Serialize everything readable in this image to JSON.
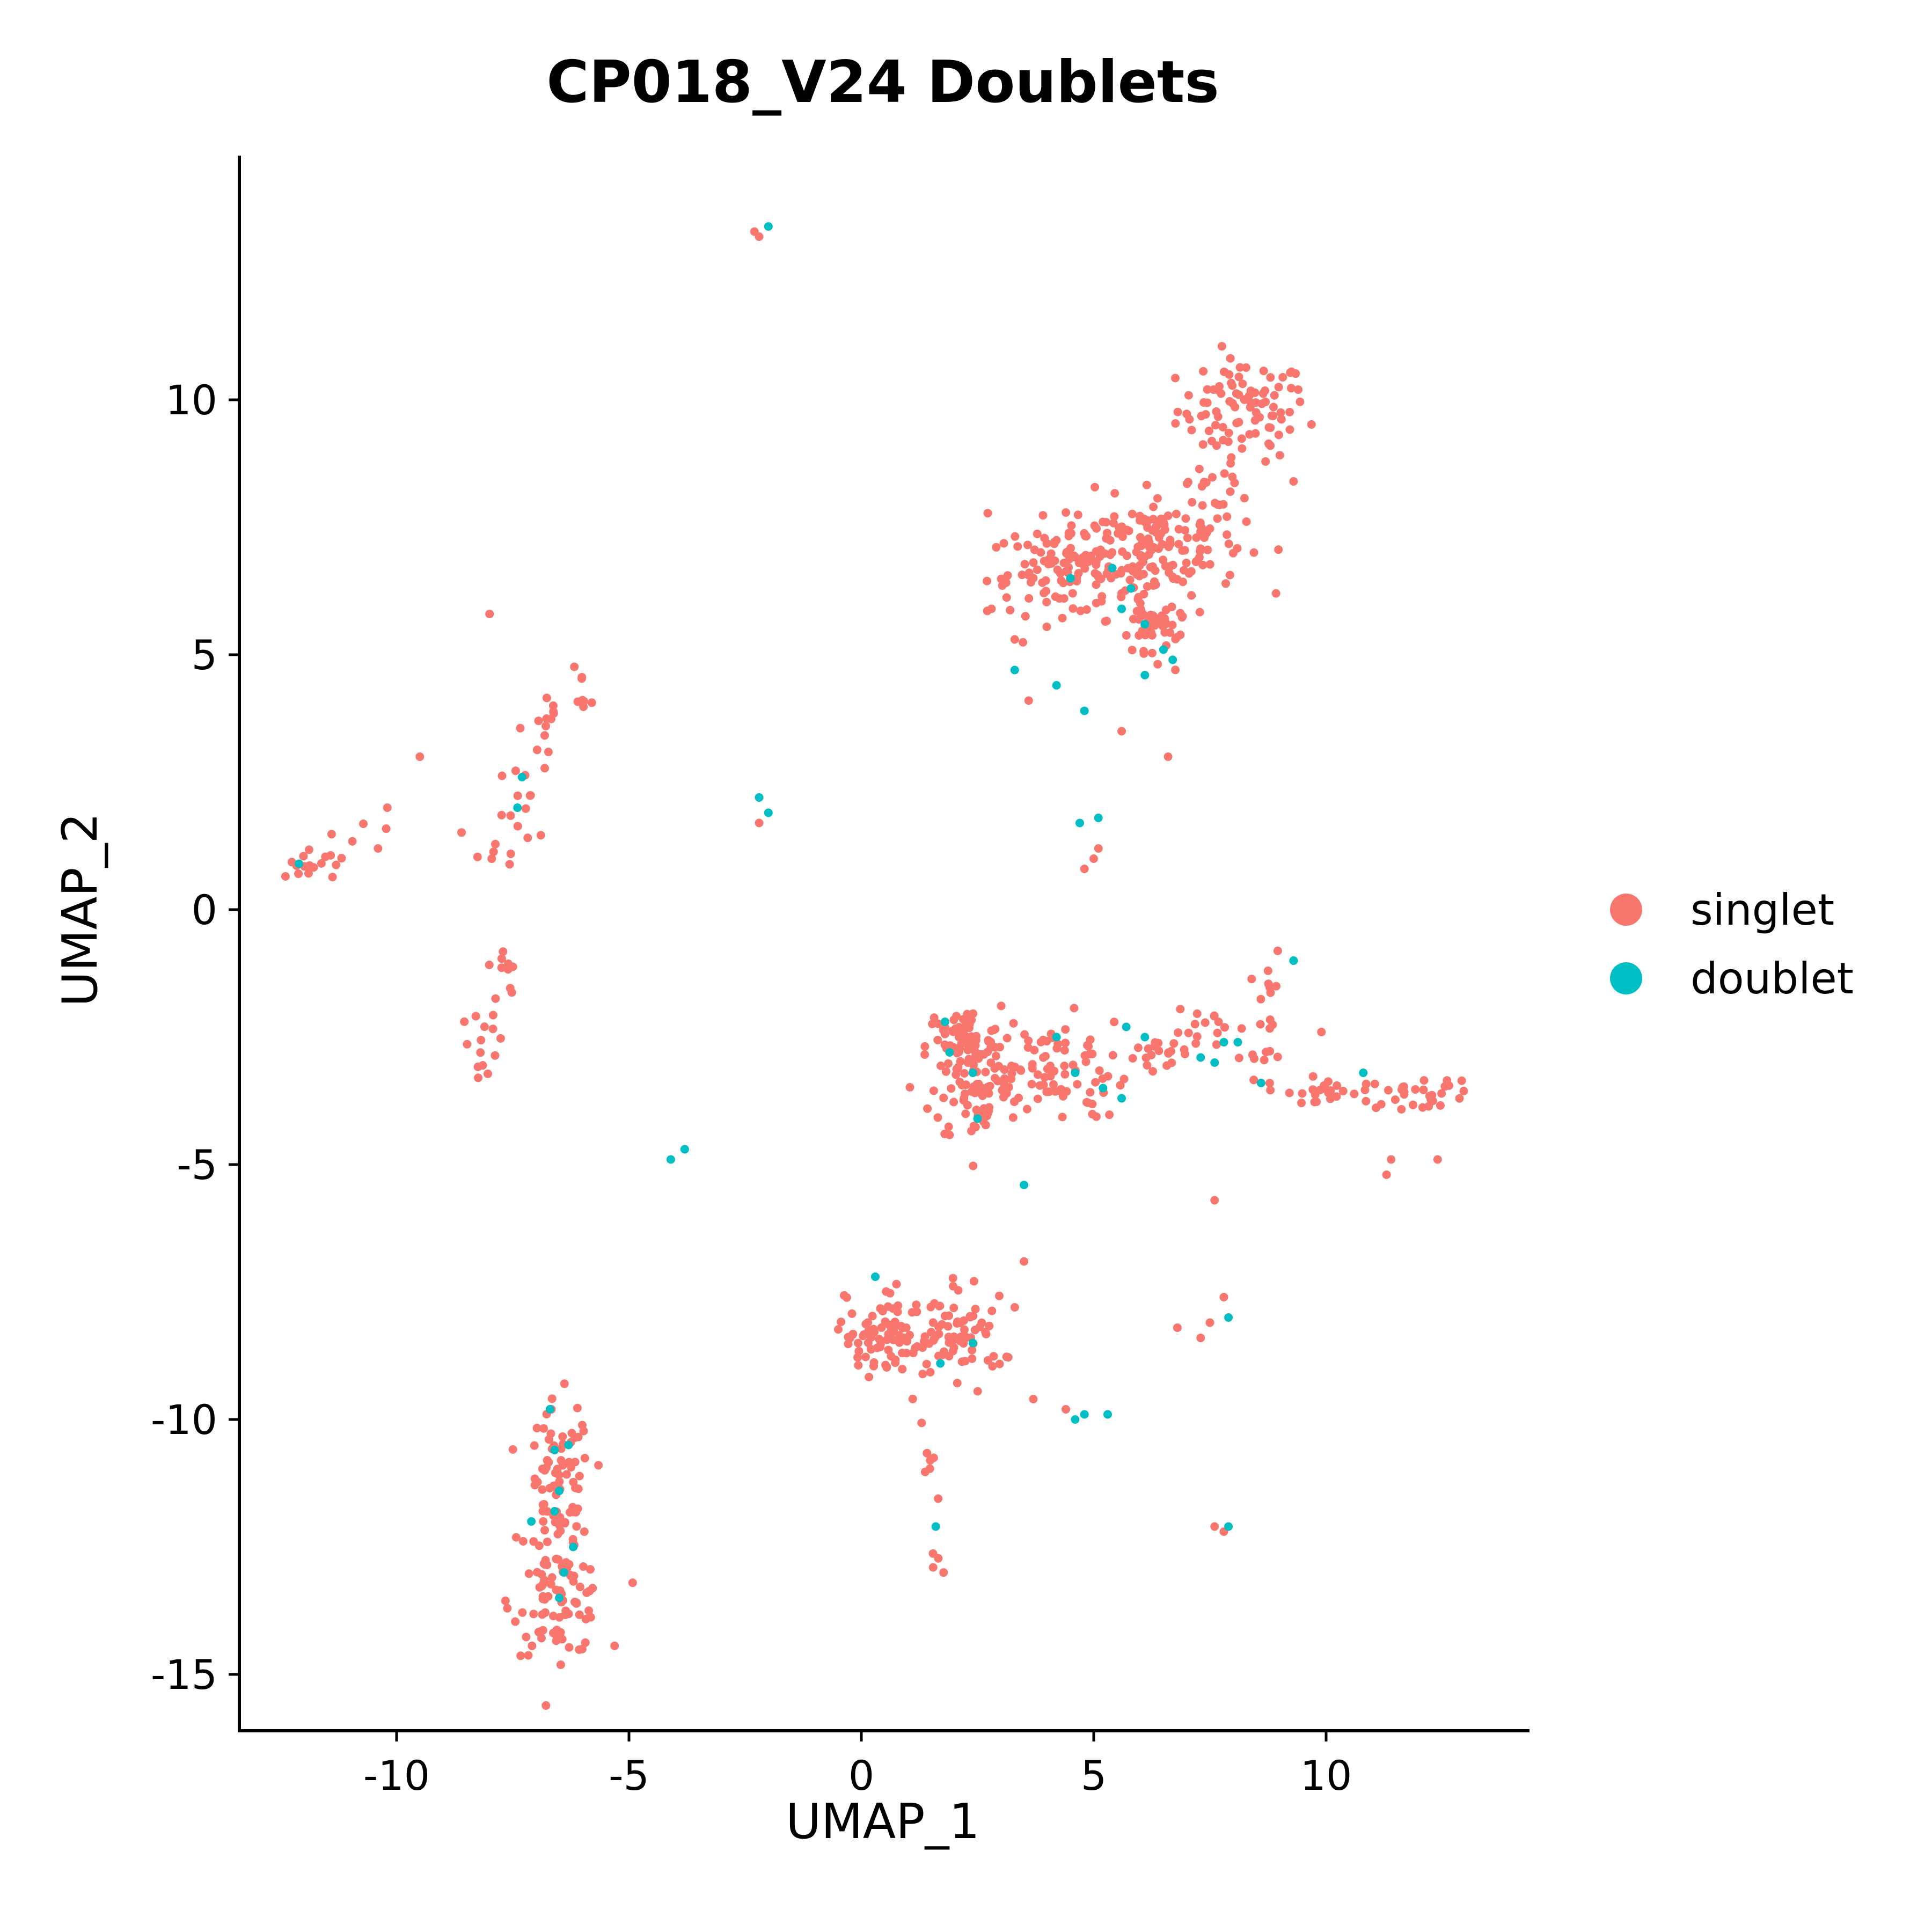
{
  "chart_data": {
    "type": "scatter",
    "title": "CP018_V24 Doublets",
    "xlabel": "UMAP_1",
    "ylabel": "UMAP_2",
    "xlim": [
      -13.7,
      14.0
    ],
    "ylim": [
      -16.1,
      14.8
    ],
    "x_ticks": [
      -10,
      -5,
      0,
      5,
      10
    ],
    "x_tick_labels": [
      "-10",
      "-5",
      "0",
      "5",
      "10"
    ],
    "y_ticks": [
      -15,
      -10,
      -5,
      0,
      5,
      10
    ],
    "y_tick_labels": [
      "-15",
      "-10",
      "-5",
      "0",
      "5",
      "10"
    ],
    "grid": false,
    "legend_position": "right",
    "series": [
      {
        "name": "singlet",
        "color": "#F8766D",
        "clusters": [
          {
            "center": [
              8.2,
              9.8
            ],
            "spread": [
              0.7,
              0.5
            ],
            "n": 90
          },
          {
            "center": [
              6.2,
              7.2
            ],
            "spread": [
              1.0,
              0.5
            ],
            "n": 160
          },
          {
            "center": [
              4.3,
              6.6
            ],
            "spread": [
              0.8,
              0.4
            ],
            "n": 90
          },
          {
            "center": [
              6.3,
              5.7
            ],
            "spread": [
              0.5,
              0.6
            ],
            "n": 45
          },
          {
            "center": [
              -6.5,
              -11.5
            ],
            "spread": [
              0.35,
              0.9
            ],
            "n": 90
          },
          {
            "center": [
              -6.5,
              -13.6
            ],
            "spread": [
              0.5,
              0.5
            ],
            "n": 80
          },
          {
            "center": [
              2.2,
              -2.7
            ],
            "spread": [
              0.4,
              0.4
            ],
            "n": 80
          },
          {
            "center": [
              2.5,
              -3.6
            ],
            "spread": [
              0.5,
              0.5
            ],
            "n": 60
          },
          {
            "center": [
              4.0,
              -3.1
            ],
            "spread": [
              0.9,
              0.5
            ],
            "n": 90
          },
          {
            "center": [
              0.3,
              -8.5
            ],
            "spread": [
              0.3,
              0.3
            ],
            "n": 45
          },
          {
            "center": [
              1.3,
              -8.3
            ],
            "spread": [
              0.8,
              0.5
            ],
            "n": 70
          },
          {
            "center": [
              2.3,
              -8.4
            ],
            "spread": [
              0.4,
              0.4
            ],
            "n": 40
          },
          {
            "center": [
              12.0,
              -3.6
            ],
            "spread": [
              0.6,
              0.15
            ],
            "n": 30
          },
          {
            "center": [
              10.0,
              -3.6
            ],
            "spread": [
              0.4,
              0.15
            ],
            "n": 18
          },
          {
            "center": [
              6.5,
              -2.7
            ],
            "spread": [
              0.5,
              0.15
            ],
            "n": 15
          },
          {
            "center": [
              7.5,
              -2.4
            ],
            "spread": [
              0.4,
              0.2
            ],
            "n": 15
          }
        ],
        "trails": [
          {
            "from": [
              -12.2,
              0.7
            ],
            "to": [
              -10.5,
              1.6
            ],
            "n": 20,
            "jitter": 0.2
          },
          {
            "from": [
              -8.3,
              -3.3
            ],
            "to": [
              -7.6,
              -0.8
            ],
            "n": 25,
            "jitter": 0.2
          },
          {
            "from": [
              -7.9,
              0.9
            ],
            "to": [
              -7.2,
              2.6
            ],
            "n": 20,
            "jitter": 0.25
          },
          {
            "from": [
              -7.0,
              3.3
            ],
            "to": [
              -5.8,
              4.6
            ],
            "n": 20,
            "jitter": 0.2
          },
          {
            "from": [
              1.2,
              -9.5
            ],
            "to": [
              1.7,
              -13.0
            ],
            "n": 12,
            "jitter": 0.08
          },
          {
            "from": [
              8.6,
              -2.6
            ],
            "to": [
              9.0,
              -0.5
            ],
            "n": 12,
            "jitter": 0.2
          },
          {
            "from": [
              8.1,
              -2.9
            ],
            "to": [
              9.8,
              -3.8
            ],
            "n": 15,
            "jitter": 0.2
          },
          {
            "from": [
              7.2,
              7.9
            ],
            "to": [
              8.3,
              9.0
            ],
            "n": 15,
            "jitter": 0.3
          },
          {
            "from": [
              6.2,
              6.5
            ],
            "to": [
              6.4,
              4.9
            ],
            "n": 15,
            "jitter": 0.3
          }
        ],
        "points": [
          [
            -8.0,
            5.8
          ],
          [
            -9.5,
            3.0
          ],
          [
            -10.2,
            2.0
          ],
          [
            -10.4,
            1.2
          ],
          [
            -2.3,
            13.3
          ],
          [
            -2.2,
            13.2
          ],
          [
            -2.2,
            1.7
          ],
          [
            5.0,
            1.0
          ],
          [
            4.8,
            0.8
          ],
          [
            5.1,
            1.2
          ],
          [
            5.6,
            3.5
          ],
          [
            6.6,
            3.0
          ],
          [
            3.6,
            4.1
          ],
          [
            2.8,
            5.9
          ],
          [
            3.3,
            5.3
          ],
          [
            7.6,
            -5.7
          ],
          [
            11.3,
            -5.2
          ],
          [
            12.4,
            -4.9
          ],
          [
            11.4,
            -4.9
          ],
          [
            3.7,
            -9.6
          ],
          [
            3.5,
            -6.9
          ],
          [
            3.3,
            -7.8
          ],
          [
            4.4,
            -9.8
          ],
          [
            7.8,
            -7.6
          ],
          [
            7.5,
            -8.1
          ],
          [
            6.8,
            -8.2
          ],
          [
            7.3,
            -8.4
          ],
          [
            7.6,
            -12.1
          ],
          [
            7.8,
            -12.2
          ],
          [
            9.9,
            -2.4
          ],
          [
            9.3,
            8.4
          ],
          [
            8.8,
            9.1
          ],
          [
            9.4,
            10.2
          ]
        ]
      },
      {
        "name": "doublet",
        "color": "#00BFC4",
        "points": [
          [
            -2.0,
            13.4
          ],
          [
            -2.2,
            2.2
          ],
          [
            -2.0,
            1.9
          ],
          [
            -12.1,
            0.9
          ],
          [
            -7.3,
            2.6
          ],
          [
            -7.4,
            2.0
          ],
          [
            -4.1,
            -4.9
          ],
          [
            -3.8,
            -4.7
          ],
          [
            3.3,
            4.7
          ],
          [
            4.2,
            4.4
          ],
          [
            4.8,
            3.9
          ],
          [
            4.7,
            1.7
          ],
          [
            5.1,
            1.8
          ],
          [
            4.5,
            6.5
          ],
          [
            5.4,
            6.7
          ],
          [
            5.8,
            6.3
          ],
          [
            5.6,
            5.9
          ],
          [
            6.1,
            5.6
          ],
          [
            6.5,
            5.1
          ],
          [
            6.1,
            4.6
          ],
          [
            6.7,
            4.9
          ],
          [
            1.8,
            -2.2
          ],
          [
            1.9,
            -2.8
          ],
          [
            2.4,
            -3.2
          ],
          [
            2.5,
            -4.1
          ],
          [
            3.5,
            -5.4
          ],
          [
            4.2,
            -2.5
          ],
          [
            4.6,
            -3.2
          ],
          [
            5.2,
            -3.5
          ],
          [
            5.6,
            -3.7
          ],
          [
            5.7,
            -2.3
          ],
          [
            6.1,
            -2.5
          ],
          [
            7.3,
            -2.9
          ],
          [
            7.6,
            -3.0
          ],
          [
            7.8,
            -2.6
          ],
          [
            8.1,
            -2.6
          ],
          [
            8.6,
            -3.4
          ],
          [
            9.3,
            -1.0
          ],
          [
            10.8,
            -3.2
          ],
          [
            0.3,
            -7.2
          ],
          [
            1.7,
            -8.9
          ],
          [
            2.4,
            -8.5
          ],
          [
            1.6,
            -12.1
          ],
          [
            7.9,
            -8.0
          ],
          [
            7.9,
            -12.1
          ],
          [
            4.8,
            -9.9
          ],
          [
            5.3,
            -9.9
          ],
          [
            4.6,
            -10.0
          ],
          [
            -6.7,
            -9.8
          ],
          [
            -6.3,
            -10.5
          ],
          [
            -6.5,
            -11.4
          ],
          [
            -6.6,
            -11.8
          ],
          [
            -7.1,
            -12.0
          ],
          [
            -6.2,
            -12.5
          ],
          [
            -6.4,
            -13.0
          ],
          [
            -6.5,
            -13.5
          ],
          [
            -6.6,
            -10.6
          ]
        ]
      }
    ]
  }
}
